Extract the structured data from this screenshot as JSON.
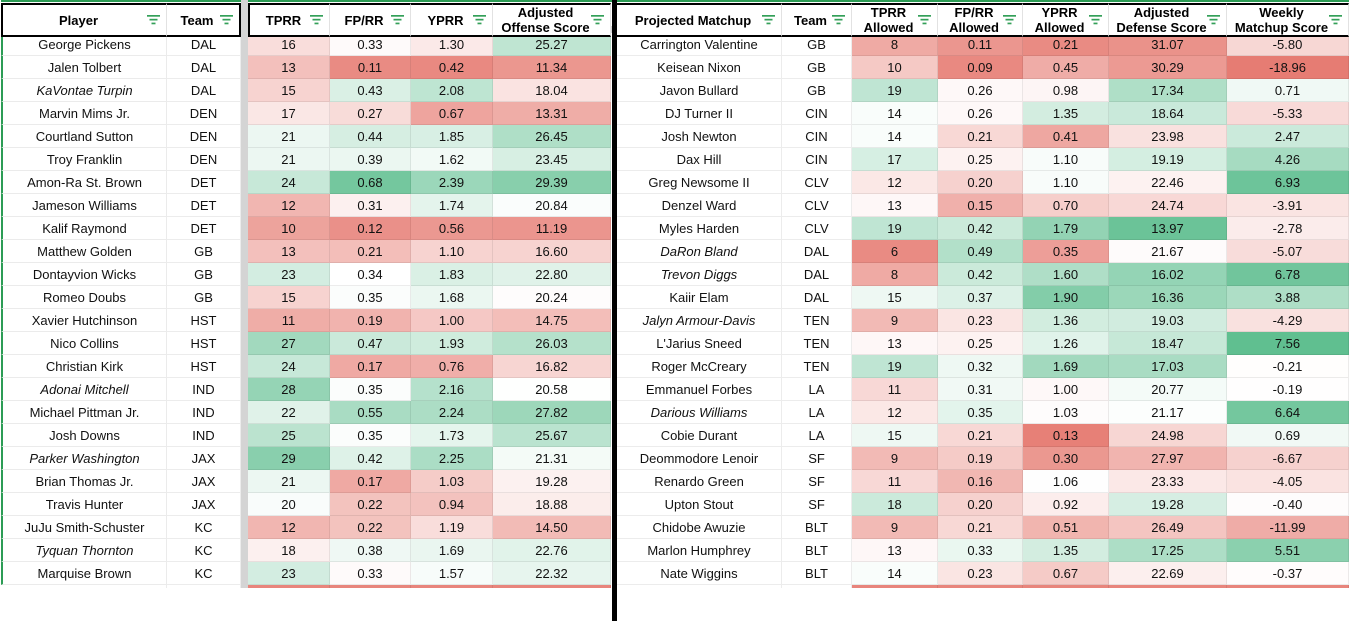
{
  "palette": {
    "negative": "#E67C73",
    "positive": "#57BB8A",
    "frame_green": "#2C9C55",
    "filter_icon_green": "#34A059",
    "band_gray": "#D4D4D4",
    "header_border": "#000000",
    "divider": "#000000",
    "partial_row_red": "#E8857C"
  },
  "icons": {
    "filter_icon": "three-line funnel (filter) glyph, green"
  },
  "left": {
    "headers": [
      "Player",
      "Team",
      "TPRR",
      "FP/RR",
      "YPRR",
      "Adjusted Offense Score"
    ],
    "col_names": [
      "tprr",
      "fp-rr",
      "yprr",
      "adjusted-offense-score"
    ],
    "scales": [
      {
        "min": 6,
        "mid": 19.5,
        "max": 33,
        "invert": false
      },
      {
        "min": 0.08,
        "mid": 0.34,
        "max": 0.75,
        "invert": false
      },
      {
        "min": 0.3,
        "mid": 1.5,
        "max": 3.0,
        "invert": false
      },
      {
        "min": 9,
        "mid": 20.5,
        "max": 33,
        "invert": false
      }
    ],
    "rows": [
      {
        "name": "George Pickens",
        "italic": false,
        "team": "DAL",
        "vals": [
          "16",
          "0.33",
          "1.30",
          "25.27"
        ]
      },
      {
        "name": "Jalen Tolbert",
        "italic": false,
        "team": "DAL",
        "vals": [
          "13",
          "0.11",
          "0.42",
          "11.34"
        ]
      },
      {
        "name": "KaVontae Turpin",
        "italic": true,
        "team": "DAL",
        "vals": [
          "15",
          "0.43",
          "2.08",
          "18.04"
        ]
      },
      {
        "name": "Marvin Mims Jr.",
        "italic": false,
        "team": "DEN",
        "vals": [
          "17",
          "0.27",
          "0.67",
          "13.31"
        ]
      },
      {
        "name": "Courtland Sutton",
        "italic": false,
        "team": "DEN",
        "vals": [
          "21",
          "0.44",
          "1.85",
          "26.45"
        ]
      },
      {
        "name": "Troy Franklin",
        "italic": false,
        "team": "DEN",
        "vals": [
          "21",
          "0.39",
          "1.62",
          "23.45"
        ]
      },
      {
        "name": "Amon-Ra St. Brown",
        "italic": false,
        "team": "DET",
        "vals": [
          "24",
          "0.68",
          "2.39",
          "29.39"
        ]
      },
      {
        "name": "Jameson Williams",
        "italic": false,
        "team": "DET",
        "vals": [
          "12",
          "0.31",
          "1.74",
          "20.84"
        ]
      },
      {
        "name": "Kalif Raymond",
        "italic": false,
        "team": "DET",
        "vals": [
          "10",
          "0.12",
          "0.56",
          "11.19"
        ]
      },
      {
        "name": "Matthew Golden",
        "italic": false,
        "team": "GB",
        "vals": [
          "13",
          "0.21",
          "1.10",
          "16.60"
        ]
      },
      {
        "name": "Dontayvion Wicks",
        "italic": false,
        "team": "GB",
        "vals": [
          "23",
          "0.34",
          "1.83",
          "22.80"
        ]
      },
      {
        "name": "Romeo Doubs",
        "italic": false,
        "team": "GB",
        "vals": [
          "15",
          "0.35",
          "1.68",
          "20.24"
        ]
      },
      {
        "name": "Xavier Hutchinson",
        "italic": false,
        "team": "HST",
        "vals": [
          "11",
          "0.19",
          "1.00",
          "14.75"
        ]
      },
      {
        "name": "Nico Collins",
        "italic": false,
        "team": "HST",
        "vals": [
          "27",
          "0.47",
          "1.93",
          "26.03"
        ]
      },
      {
        "name": "Christian Kirk",
        "italic": false,
        "team": "HST",
        "vals": [
          "24",
          "0.17",
          "0.76",
          "16.82"
        ]
      },
      {
        "name": "Adonai Mitchell",
        "italic": true,
        "team": "IND",
        "vals": [
          "28",
          "0.35",
          "2.16",
          "20.58"
        ]
      },
      {
        "name": "Michael Pittman Jr.",
        "italic": false,
        "team": "IND",
        "vals": [
          "22",
          "0.55",
          "2.24",
          "27.82"
        ]
      },
      {
        "name": "Josh Downs",
        "italic": false,
        "team": "IND",
        "vals": [
          "25",
          "0.35",
          "1.73",
          "25.67"
        ]
      },
      {
        "name": "Parker Washington",
        "italic": true,
        "team": "JAX",
        "vals": [
          "29",
          "0.42",
          "2.25",
          "21.31"
        ]
      },
      {
        "name": "Brian Thomas Jr.",
        "italic": false,
        "team": "JAX",
        "vals": [
          "21",
          "0.17",
          "1.03",
          "19.28"
        ]
      },
      {
        "name": "Travis Hunter",
        "italic": false,
        "team": "JAX",
        "vals": [
          "20",
          "0.22",
          "0.94",
          "18.88"
        ]
      },
      {
        "name": "JuJu Smith-Schuster",
        "italic": false,
        "team": "KC",
        "vals": [
          "12",
          "0.22",
          "1.19",
          "14.50"
        ]
      },
      {
        "name": "Tyquan Thornton",
        "italic": true,
        "team": "KC",
        "vals": [
          "18",
          "0.38",
          "1.69",
          "22.76"
        ]
      },
      {
        "name": "Marquise Brown",
        "italic": false,
        "team": "KC",
        "vals": [
          "23",
          "0.33",
          "1.57",
          "22.32"
        ]
      }
    ]
  },
  "right": {
    "headers": [
      "Projected Matchup",
      "Team",
      "TPRR Allowed",
      "FP/RR Allowed",
      "YPRR Allowed",
      "Adjusted Defense Score",
      "Weekly Matchup Score"
    ],
    "col_names": [
      "tprr-allowed",
      "fp-rr-allowed",
      "yprr-allowed",
      "adjusted-defense-score",
      "weekly-matchup-score"
    ],
    "scales": [
      {
        "min": 5,
        "mid": 13.5,
        "max": 28,
        "invert": false
      },
      {
        "min": 0.07,
        "mid": 0.27,
        "max": 0.75,
        "invert": false
      },
      {
        "min": 0.1,
        "mid": 1.05,
        "max": 2.2,
        "invert": false
      },
      {
        "min": 13,
        "mid": 21.3,
        "max": 33,
        "invert": true
      },
      {
        "min": -19,
        "mid": 0,
        "max": 8,
        "invert": false
      }
    ],
    "rows": [
      {
        "name": "Carrington Valentine",
        "italic": false,
        "team": "GB",
        "vals": [
          "8",
          "0.11",
          "0.21",
          "31.07",
          "-5.80"
        ]
      },
      {
        "name": "Keisean Nixon",
        "italic": false,
        "team": "GB",
        "vals": [
          "10",
          "0.09",
          "0.45",
          "30.29",
          "-18.96"
        ]
      },
      {
        "name": "Javon Bullard",
        "italic": false,
        "team": "GB",
        "vals": [
          "19",
          "0.26",
          "0.98",
          "17.34",
          "0.71"
        ]
      },
      {
        "name": "DJ Turner II",
        "italic": false,
        "team": "CIN",
        "vals": [
          "14",
          "0.26",
          "1.35",
          "18.64",
          "-5.33"
        ]
      },
      {
        "name": "Josh Newton",
        "italic": false,
        "team": "CIN",
        "vals": [
          "14",
          "0.21",
          "0.41",
          "23.98",
          "2.47"
        ]
      },
      {
        "name": "Dax Hill",
        "italic": false,
        "team": "CIN",
        "vals": [
          "17",
          "0.25",
          "1.10",
          "19.19",
          "4.26"
        ]
      },
      {
        "name": "Greg Newsome II",
        "italic": false,
        "team": "CLV",
        "vals": [
          "12",
          "0.20",
          "1.10",
          "22.46",
          "6.93"
        ]
      },
      {
        "name": "Denzel Ward",
        "italic": false,
        "team": "CLV",
        "vals": [
          "13",
          "0.15",
          "0.70",
          "24.74",
          "-3.91"
        ]
      },
      {
        "name": "Myles Harden",
        "italic": false,
        "team": "CLV",
        "vals": [
          "19",
          "0.42",
          "1.79",
          "13.97",
          "-2.78"
        ]
      },
      {
        "name": "DaRon Bland",
        "italic": true,
        "team": "DAL",
        "vals": [
          "6",
          "0.49",
          "0.35",
          "21.67",
          "-5.07"
        ]
      },
      {
        "name": "Trevon Diggs",
        "italic": true,
        "team": "DAL",
        "vals": [
          "8",
          "0.42",
          "1.60",
          "16.02",
          "6.78"
        ]
      },
      {
        "name": "Kaiir Elam",
        "italic": false,
        "team": "DAL",
        "vals": [
          "15",
          "0.37",
          "1.90",
          "16.36",
          "3.88"
        ]
      },
      {
        "name": "Jalyn Armour-Davis",
        "italic": true,
        "team": "TEN",
        "vals": [
          "9",
          "0.23",
          "1.36",
          "19.03",
          "-4.29"
        ]
      },
      {
        "name": "L'Jarius Sneed",
        "italic": false,
        "team": "TEN",
        "vals": [
          "13",
          "0.25",
          "1.26",
          "18.47",
          "7.56"
        ]
      },
      {
        "name": "Roger McCreary",
        "italic": false,
        "team": "TEN",
        "vals": [
          "19",
          "0.32",
          "1.69",
          "17.03",
          "-0.21"
        ]
      },
      {
        "name": "Emmanuel Forbes",
        "italic": false,
        "team": "LA",
        "vals": [
          "11",
          "0.31",
          "1.00",
          "20.77",
          "-0.19"
        ]
      },
      {
        "name": "Darious Williams",
        "italic": true,
        "team": "LA",
        "vals": [
          "12",
          "0.35",
          "1.03",
          "21.17",
          "6.64"
        ]
      },
      {
        "name": "Cobie Durant",
        "italic": false,
        "team": "LA",
        "vals": [
          "15",
          "0.21",
          "0.13",
          "24.98",
          "0.69"
        ]
      },
      {
        "name": "Deommodore Lenoir",
        "italic": false,
        "team": "SF",
        "vals": [
          "9",
          "0.19",
          "0.30",
          "27.97",
          "-6.67"
        ]
      },
      {
        "name": "Renardo Green",
        "italic": false,
        "team": "SF",
        "vals": [
          "11",
          "0.16",
          "1.06",
          "23.33",
          "-4.05"
        ]
      },
      {
        "name": "Upton Stout",
        "italic": false,
        "team": "SF",
        "vals": [
          "18",
          "0.20",
          "0.92",
          "19.28",
          "-0.40"
        ]
      },
      {
        "name": "Chidobe Awuzie",
        "italic": false,
        "team": "BLT",
        "vals": [
          "9",
          "0.21",
          "0.51",
          "26.49",
          "-11.99"
        ]
      },
      {
        "name": "Marlon Humphrey",
        "italic": false,
        "team": "BLT",
        "vals": [
          "13",
          "0.33",
          "1.35",
          "17.25",
          "5.51"
        ]
      },
      {
        "name": "Nate Wiggins",
        "italic": false,
        "team": "BLT",
        "vals": [
          "14",
          "0.23",
          "0.67",
          "22.69",
          "-0.37"
        ]
      }
    ]
  }
}
